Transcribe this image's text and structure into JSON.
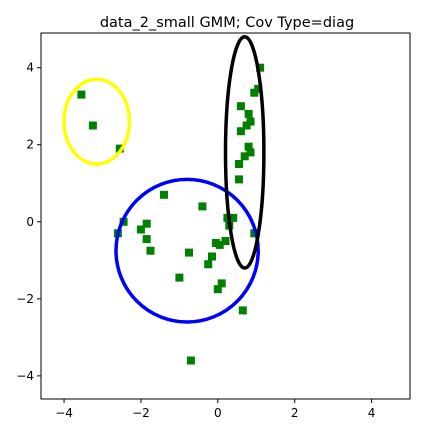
{
  "chart_data": {
    "type": "scatter",
    "title": "data_2_small GMM; Cov Type=diag",
    "xlabel": "",
    "ylabel": "",
    "xlim": [
      -4.6,
      5.0
    ],
    "ylim": [
      -4.6,
      4.9
    ],
    "grid": false,
    "x_ticks": [
      -4,
      -2,
      0,
      2,
      4
    ],
    "y_ticks": [
      -4,
      -2,
      0,
      2,
      4
    ],
    "x_tick_labels": [
      "−4",
      "−2",
      "0",
      "2",
      "4"
    ],
    "y_tick_labels": [
      "−4",
      "−2",
      "0",
      "2",
      "4"
    ],
    "marker": "square",
    "marker_color": "#008000",
    "points": [
      {
        "x": -3.55,
        "y": 3.3
      },
      {
        "x": -3.25,
        "y": 2.5
      },
      {
        "x": -2.55,
        "y": 1.9
      },
      {
        "x": -2.45,
        "y": 0.0
      },
      {
        "x": -2.6,
        "y": -0.3
      },
      {
        "x": -2.0,
        "y": -0.2
      },
      {
        "x": -1.85,
        "y": -0.05
      },
      {
        "x": -1.85,
        "y": -0.45
      },
      {
        "x": -1.75,
        "y": -0.75
      },
      {
        "x": -1.4,
        "y": 0.7
      },
      {
        "x": -1.0,
        "y": -1.45
      },
      {
        "x": -0.75,
        "y": -0.8
      },
      {
        "x": -0.4,
        "y": 0.4
      },
      {
        "x": -0.25,
        "y": -1.1
      },
      {
        "x": -0.15,
        "y": -0.9
      },
      {
        "x": -0.05,
        "y": -0.55
      },
      {
        "x": 0.1,
        "y": -1.6
      },
      {
        "x": 0.05,
        "y": -0.6
      },
      {
        "x": 0.0,
        "y": -1.75
      },
      {
        "x": 0.2,
        "y": -0.5
      },
      {
        "x": 0.25,
        "y": 0.1
      },
      {
        "x": 0.3,
        "y": -0.1
      },
      {
        "x": 0.4,
        "y": 0.1
      },
      {
        "x": 0.55,
        "y": 1.1
      },
      {
        "x": 0.55,
        "y": 1.5
      },
      {
        "x": 0.6,
        "y": 2.35
      },
      {
        "x": 0.6,
        "y": 3.0
      },
      {
        "x": 0.65,
        "y": -2.3
      },
      {
        "x": 0.7,
        "y": 1.7
      },
      {
        "x": 0.75,
        "y": 2.5
      },
      {
        "x": 0.8,
        "y": 2.8
      },
      {
        "x": 0.8,
        "y": 1.95
      },
      {
        "x": 0.85,
        "y": 1.8
      },
      {
        "x": 0.85,
        "y": 2.6
      },
      {
        "x": 0.95,
        "y": 3.35
      },
      {
        "x": 0.95,
        "y": -0.3
      },
      {
        "x": 1.05,
        "y": 3.45
      },
      {
        "x": 1.1,
        "y": 4.0
      },
      {
        "x": -0.7,
        "y": -3.6
      }
    ],
    "ellipses": [
      {
        "color": "#ffff00",
        "cx": -3.15,
        "cy": 2.6,
        "rx": 0.85,
        "ry": 1.1
      },
      {
        "color": "#0000ff",
        "cx": -0.8,
        "cy": -0.75,
        "rx": 1.85,
        "ry": 1.85
      },
      {
        "color": "#000000",
        "cx": 0.7,
        "cy": 1.8,
        "rx": 0.5,
        "ry": 3.0
      }
    ]
  }
}
